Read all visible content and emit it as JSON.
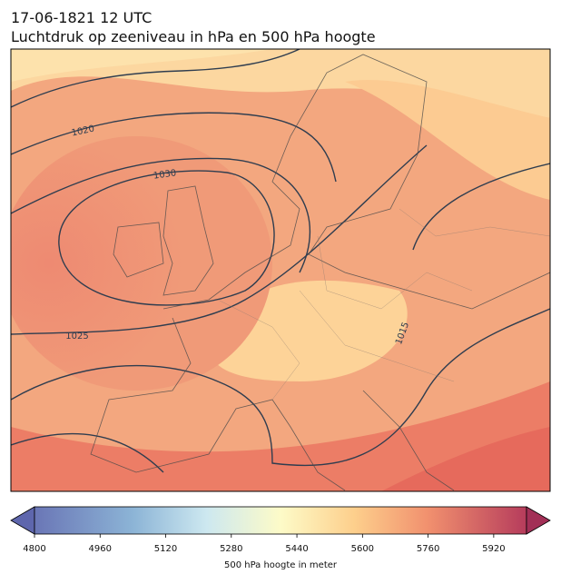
{
  "header": {
    "title": "17-06-1821 12 UTC",
    "subtitle": "Luchtdruk op zeeniveau in hPa en 500 hPa hoogte"
  },
  "map": {
    "contour_labels": [
      "1020",
      "1030",
      "1025",
      "1015"
    ]
  },
  "colorbar": {
    "label": "500 hPa hoogte in meter",
    "range": [
      4800,
      6000
    ],
    "ticks": [
      4800,
      4960,
      5120,
      5280,
      5440,
      5600,
      5760,
      5920
    ]
  }
}
